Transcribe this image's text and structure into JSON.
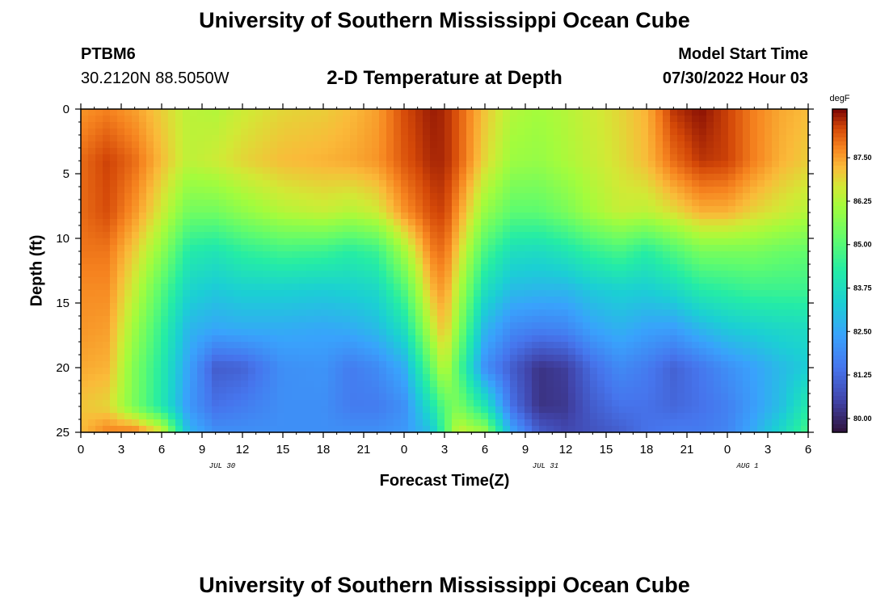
{
  "header": {
    "title": "University of Southern Mississippi Ocean Cube",
    "station": "PTBM6",
    "coords": "30.2120N  88.5050W",
    "plot_title": "2-D Temperature at Depth",
    "model_start_label": "Model Start Time",
    "model_start_value": "07/30/2022 Hour 03"
  },
  "footer": {
    "title": "University of Southern Mississippi Ocean Cube"
  },
  "chart_data": {
    "type": "heatmap",
    "title": "2-D Temperature at Depth",
    "xlabel": "Forecast Time(Z)",
    "ylabel": "Depth (ft)",
    "x_tick_labels": [
      "0",
      "3",
      "6",
      "9",
      "12",
      "15",
      "18",
      "21",
      "0",
      "3",
      "6",
      "9",
      "12",
      "15",
      "18",
      "21",
      "0",
      "3",
      "6"
    ],
    "date_labels": [
      {
        "text": "JUL 30",
        "at_tick": 3.5
      },
      {
        "text": "JUL 31",
        "at_tick": 11.5
      },
      {
        "text": "AUG 1",
        "at_tick": 16.5
      }
    ],
    "y_tick_labels": [
      "0",
      "5",
      "10",
      "15",
      "20",
      "25"
    ],
    "xlim_hours": [
      0,
      54
    ],
    "ylim_ft": [
      0,
      25
    ],
    "colorbar": {
      "unit": "degF",
      "labels": [
        "87.50",
        "86.25",
        "85.00",
        "83.75",
        "82.50",
        "81.25",
        "80.00"
      ],
      "range": [
        79.6,
        88.9
      ]
    },
    "temperature_field": {
      "description_units": "degF",
      "hours": [
        0,
        2,
        4,
        6,
        8,
        10,
        12,
        15,
        18,
        20,
        22,
        24,
        26,
        27,
        28,
        30,
        32,
        34,
        36,
        38,
        40,
        42,
        44,
        46,
        48,
        50,
        52,
        54
      ],
      "depths_ft": [
        0,
        4,
        8,
        11,
        14,
        17,
        20,
        23,
        25
      ],
      "rows": [
        [
          87.6,
          87.8,
          87.5,
          87.0,
          86.4,
          86.3,
          86.6,
          86.9,
          87.0,
          87.2,
          87.5,
          88.3,
          88.7,
          88.6,
          88.2,
          87.1,
          86.3,
          86.1,
          86.3,
          86.6,
          86.9,
          87.3,
          88.5,
          88.8,
          88.4,
          87.8,
          87.4,
          87.2
        ],
        [
          88.0,
          88.4,
          88.0,
          87.2,
          86.4,
          86.6,
          86.9,
          87.2,
          87.3,
          87.4,
          87.6,
          88.2,
          88.6,
          88.6,
          88.2,
          86.9,
          86.0,
          85.9,
          86.2,
          86.5,
          86.8,
          87.2,
          88.0,
          88.5,
          88.4,
          87.8,
          87.3,
          87.0
        ],
        [
          88.0,
          88.3,
          87.6,
          86.6,
          85.4,
          85.4,
          85.8,
          86.3,
          86.5,
          86.3,
          86.6,
          87.6,
          88.3,
          88.4,
          87.6,
          85.9,
          85.1,
          85.1,
          85.5,
          86.1,
          86.5,
          86.4,
          86.8,
          87.3,
          87.3,
          86.9,
          86.6,
          86.3
        ],
        [
          87.9,
          87.9,
          87.0,
          85.8,
          84.2,
          84.0,
          84.4,
          84.7,
          84.6,
          84.3,
          84.6,
          86.1,
          87.8,
          88.0,
          87.0,
          84.8,
          83.8,
          83.7,
          84.0,
          84.5,
          84.8,
          84.3,
          84.9,
          85.5,
          85.5,
          85.5,
          85.3,
          85.2
        ],
        [
          87.7,
          87.7,
          86.5,
          85.0,
          83.5,
          83.2,
          83.4,
          83.4,
          83.3,
          83.4,
          83.6,
          84.9,
          87.2,
          87.6,
          86.4,
          83.8,
          82.9,
          82.8,
          82.8,
          83.2,
          83.4,
          83.3,
          83.6,
          84.2,
          84.4,
          84.6,
          84.6,
          84.6
        ],
        [
          87.6,
          87.5,
          86.0,
          84.5,
          82.8,
          82.5,
          82.6,
          82.6,
          82.5,
          82.6,
          82.9,
          83.8,
          86.4,
          87.2,
          85.8,
          82.8,
          81.9,
          81.7,
          81.8,
          82.4,
          82.7,
          82.4,
          82.3,
          82.8,
          83.2,
          83.4,
          83.6,
          83.7
        ],
        [
          87.4,
          87.3,
          85.6,
          84.2,
          82.4,
          81.0,
          81.1,
          82.0,
          82.1,
          81.6,
          81.9,
          82.6,
          85.2,
          86.5,
          85.0,
          82.0,
          81.0,
          80.2,
          80.4,
          81.3,
          81.9,
          81.6,
          81.1,
          81.5,
          82.0,
          82.4,
          82.9,
          83.3
        ],
        [
          87.1,
          86.9,
          85.5,
          84.1,
          82.2,
          81.4,
          81.6,
          82.0,
          82.0,
          81.6,
          81.6,
          82.0,
          83.9,
          85.1,
          85.6,
          84.0,
          81.4,
          80.2,
          80.3,
          81.0,
          81.4,
          81.4,
          81.2,
          81.4,
          81.7,
          82.3,
          83.0,
          84.2
        ],
        [
          87.2,
          87.8,
          87.9,
          86.8,
          82.8,
          82.0,
          82.0,
          82.0,
          82.0,
          82.0,
          82.0,
          82.2,
          83.0,
          84.8,
          86.6,
          86.0,
          82.5,
          81.0,
          80.6,
          80.8,
          81.0,
          81.4,
          81.6,
          81.6,
          81.8,
          82.6,
          83.6,
          84.8
        ]
      ]
    }
  }
}
